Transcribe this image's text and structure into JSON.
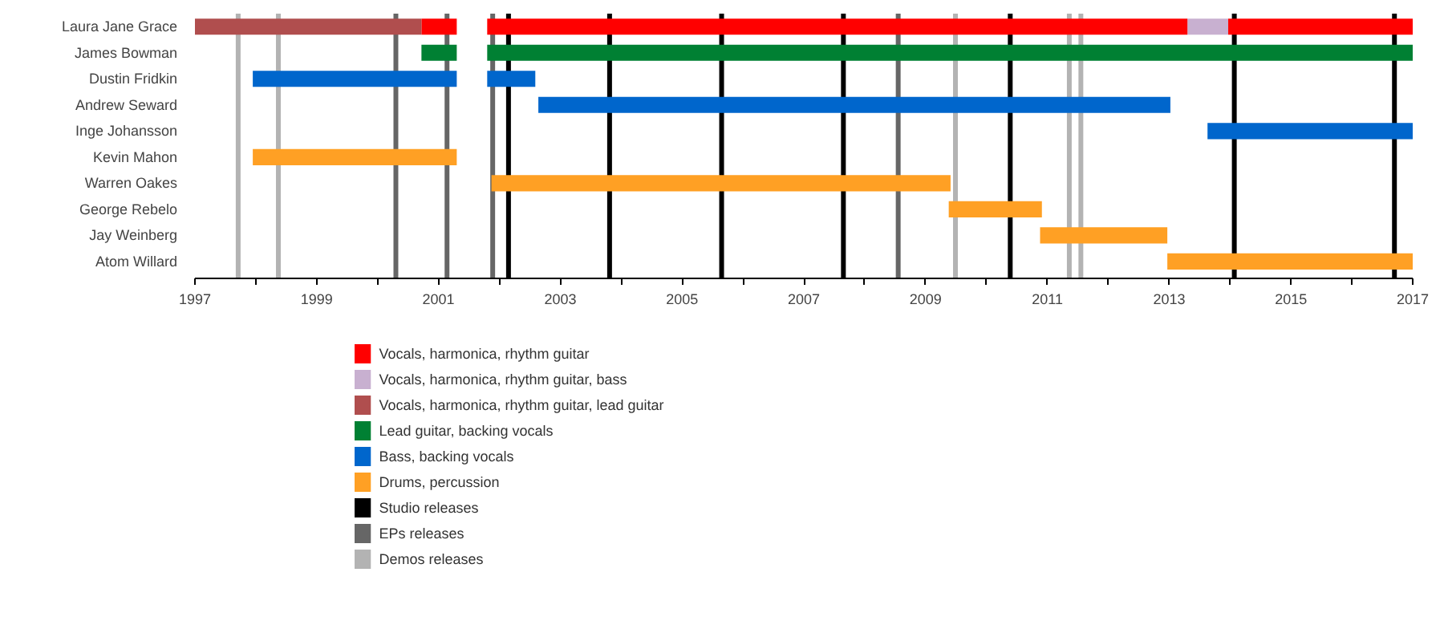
{
  "chart_data": {
    "type": "bar",
    "orientation": "horizontal",
    "legend": "bottom left",
    "grid": false,
    "categories": [
      "Laura Jane Grace",
      "James Bowman",
      "Dustin Fridkin",
      "Andrew Seward",
      "Inge Johansson",
      "Kevin Mahon",
      "Warren Oakes",
      "George Rebelo",
      "Jay Weinberg",
      "Atom Willard"
    ],
    "xlim": [
      1997,
      2017
    ],
    "xticks": [
      1997,
      {
        "value": 1998,
        "label": null
      },
      1999,
      {
        "value": 2000,
        "label": null
      },
      2001,
      {
        "value": 2002,
        "label": null
      },
      2003,
      {
        "value": 2004,
        "label": null
      },
      2005,
      {
        "value": 2006,
        "label": null
      },
      2007,
      {
        "value": 2008,
        "label": null
      },
      2009,
      {
        "value": 2010,
        "label": null
      },
      2011,
      {
        "value": 2012,
        "label": null
      },
      2013,
      {
        "value": 2014,
        "label": null
      },
      2015,
      {
        "value": 2016,
        "label": null
      },
      2017
    ],
    "series": [
      {
        "name": "Vocals, harmonica, rhythm guitar",
        "color": "#ff0000",
        "values": [
          0.58,
          null,
          null,
          null,
          null,
          null,
          null,
          null,
          null,
          null
        ],
        "base": [
          2000.72,
          null,
          null,
          null,
          null,
          null,
          null,
          null,
          null,
          null
        ]
      },
      {
        "name": "Vocals, harmonica, rhythm guitar, bass",
        "color": "#c8b0d0",
        "values": [
          0.67,
          null,
          null,
          null,
          null,
          null,
          null,
          null,
          null,
          null
        ],
        "base": [
          2013.3,
          null,
          null,
          null,
          null,
          null,
          null,
          null,
          null,
          null
        ]
      },
      {
        "name": "Vocals, harmonica, rhythm guitar, lead guitar",
        "color": "#b04e4e",
        "values": [
          3.72,
          null,
          null,
          null,
          null,
          null,
          null,
          null,
          null,
          null
        ],
        "base": [
          1997,
          null,
          null,
          null,
          null,
          null,
          null,
          null,
          null,
          null
        ]
      },
      {
        "name": "Lead guitar, backing vocals",
        "color": "#008033",
        "values": [
          null,
          0.58,
          null,
          null,
          null,
          null,
          null,
          null,
          null,
          null
        ],
        "base": [
          null,
          2000.72,
          null,
          null,
          null,
          null,
          null,
          null,
          null,
          null
        ]
      },
      {
        "name": "Bass, backing vocals",
        "color": "#0066cc",
        "values": [
          null,
          null,
          3.35,
          10.38,
          3.37,
          null,
          null,
          null,
          null,
          null
        ],
        "base": [
          null,
          null,
          1997.95,
          2002.64,
          2013.63,
          null,
          null,
          null,
          null,
          null
        ]
      },
      {
        "name": "Drums, percussion",
        "color": "#ffa024",
        "values": [
          null,
          null,
          null,
          null,
          null,
          3.35,
          7.54,
          1.53,
          2.09,
          4.03
        ],
        "base": [
          null,
          null,
          null,
          null,
          null,
          1997.95,
          2001.87,
          2009.38,
          2010.88,
          2012.97
        ]
      },
      {
        "color": "#ff0000",
        "values": [
          11.5,
          null,
          null,
          null,
          null,
          null,
          null,
          null,
          null,
          null
        ],
        "base": [
          2001.8,
          null,
          null,
          null,
          null,
          null,
          null,
          null,
          null,
          null
        ]
      },
      {
        "color": "#ff0000",
        "values": [
          3.03,
          null,
          null,
          null,
          null,
          null,
          null,
          null,
          null,
          null
        ],
        "base": [
          2013.97,
          null,
          null,
          null,
          null,
          null,
          null,
          null,
          null,
          null
        ]
      },
      {
        "color": "#008033",
        "values": [
          null,
          15.2,
          null,
          null,
          null,
          null,
          null,
          null,
          null,
          null
        ],
        "base": [
          null,
          2001.8,
          null,
          null,
          null,
          null,
          null,
          null,
          null,
          null
        ]
      },
      {
        "color": "#0066cc",
        "values": [
          null,
          null,
          0.79,
          null,
          null,
          null,
          null,
          null,
          null,
          null
        ],
        "base": [
          null,
          null,
          2001.8,
          null,
          null,
          null,
          null,
          null,
          null,
          null
        ]
      }
    ],
    "ref_lines": [
      {
        "axis": "x",
        "value": 2002.15,
        "label": "Studio releases",
        "color": "#000000"
      },
      {
        "axis": "x",
        "value": 2003.81,
        "color": "#000000"
      },
      {
        "axis": "x",
        "value": 2005.65,
        "color": "#000000"
      },
      {
        "axis": "x",
        "value": 2007.65,
        "color": "#000000"
      },
      {
        "axis": "x",
        "value": 2010.39,
        "color": "#000000"
      },
      {
        "axis": "x",
        "value": 2014.07,
        "color": "#000000"
      },
      {
        "axis": "x",
        "value": 2016.7,
        "color": "#000000"
      },
      {
        "axis": "x",
        "value": 2000.3,
        "label": "EPs releases",
        "color": "#666666"
      },
      {
        "axis": "x",
        "value": 2001.14,
        "color": "#666666"
      },
      {
        "axis": "x",
        "value": 2001.89,
        "color": "#666666"
      },
      {
        "axis": "x",
        "value": 2008.55,
        "color": "#666666"
      },
      {
        "axis": "x",
        "value": 1997.71,
        "label": "Demos releases",
        "color": "#b3b3b3"
      },
      {
        "axis": "x",
        "value": 1998.37,
        "color": "#b3b3b3"
      },
      {
        "axis": "x",
        "value": 2009.49,
        "color": "#b3b3b3"
      },
      {
        "axis": "x",
        "value": 2011.36,
        "color": "#b3b3b3"
      },
      {
        "axis": "x",
        "value": 2011.55,
        "color": "#b3b3b3"
      }
    ]
  }
}
